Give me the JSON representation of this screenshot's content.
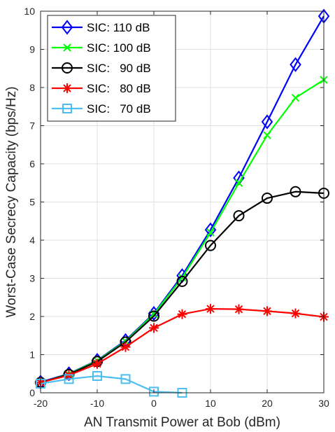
{
  "chart_data": {
    "type": "line",
    "title": "",
    "xlabel": "AN Transmit Power at Bob (dBm)",
    "ylabel": "Worst-Case Secrecy Capacity (bps/Hz)",
    "xlim": [
      -20,
      30
    ],
    "ylim": [
      0,
      10
    ],
    "xticks": [
      "-20",
      "-10",
      "0",
      "10",
      "20",
      "30"
    ],
    "yticks": [
      "0",
      "1",
      "2",
      "3",
      "4",
      "5",
      "6",
      "7",
      "8",
      "9",
      "10"
    ],
    "grid": true,
    "legend_position": "top-left",
    "series": [
      {
        "name": "SIC: 110 dB",
        "color": "#0000ff",
        "marker": "diamond",
        "x": [
          -20,
          -15,
          -10,
          -5,
          0,
          5,
          10,
          15,
          20,
          25,
          30
        ],
        "y": [
          0.28,
          0.5,
          0.85,
          1.37,
          2.08,
          3.07,
          4.27,
          5.63,
          7.1,
          8.6,
          9.87
        ]
      },
      {
        "name": "SIC: 100 dB",
        "color": "#00ff00",
        "marker": "x",
        "x": [
          -20,
          -15,
          -10,
          -5,
          0,
          5,
          10,
          15,
          20,
          25,
          30
        ],
        "y": [
          0.27,
          0.49,
          0.84,
          1.35,
          2.06,
          3.02,
          4.2,
          5.5,
          6.75,
          7.73,
          8.2
        ]
      },
      {
        "name": "SIC:   90 dB",
        "color": "#000000",
        "marker": "circle",
        "x": [
          -20,
          -15,
          -10,
          -5,
          0,
          5,
          10,
          15,
          20,
          25,
          30
        ],
        "y": [
          0.27,
          0.48,
          0.82,
          1.33,
          2.01,
          2.92,
          3.86,
          4.64,
          5.1,
          5.27,
          5.23
        ]
      },
      {
        "name": "SIC:   80 dB",
        "color": "#ff0000",
        "marker": "asterisk",
        "x": [
          -20,
          -15,
          -10,
          -5,
          0,
          5,
          10,
          15,
          20,
          25,
          30
        ],
        "y": [
          0.27,
          0.46,
          0.76,
          1.2,
          1.7,
          2.06,
          2.2,
          2.19,
          2.14,
          2.08,
          1.99
        ]
      },
      {
        "name": "SIC:   70 dB",
        "color": "#4dbeee",
        "marker": "square",
        "x": [
          -20,
          -15,
          -10,
          -5,
          0,
          5
        ],
        "y": [
          0.24,
          0.36,
          0.44,
          0.36,
          0.03,
          0.0
        ]
      }
    ]
  }
}
